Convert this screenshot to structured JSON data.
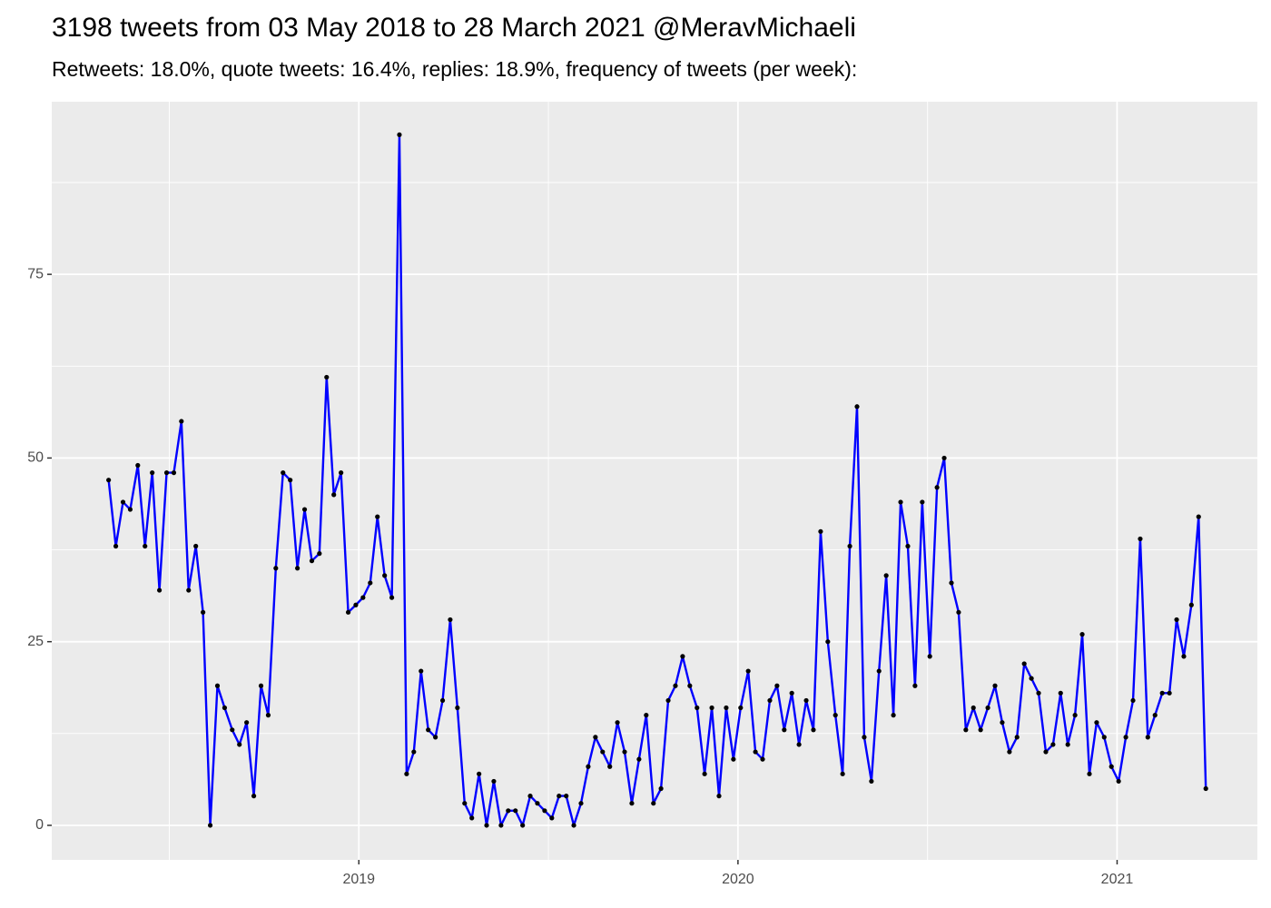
{
  "chart_data": {
    "type": "line",
    "title": "3198 tweets from 03 May 2018 to 28 March 2021 @MeravMichaeli",
    "subtitle": "Retweets: 18.0%, quote tweets: 16.4%, replies: 18.9%, frequency of tweets (per week):",
    "color": "#0000ff",
    "point_color": "#000000",
    "x": [
      2018.34,
      2018.359,
      2018.378,
      2018.397,
      2018.417,
      2018.436,
      2018.455,
      2018.474,
      2018.493,
      2018.512,
      2018.532,
      2018.551,
      2018.57,
      2018.589,
      2018.608,
      2018.627,
      2018.646,
      2018.666,
      2018.685,
      2018.704,
      2018.723,
      2018.742,
      2018.761,
      2018.781,
      2018.8,
      2018.819,
      2018.838,
      2018.857,
      2018.876,
      2018.896,
      2018.915,
      2018.934,
      2018.953,
      2018.972,
      2018.992,
      2019.011,
      2019.03,
      2019.049,
      2019.068,
      2019.087,
      2019.107,
      2019.126,
      2019.145,
      2019.164,
      2019.183,
      2019.202,
      2019.221,
      2019.241,
      2019.26,
      2019.279,
      2019.298,
      2019.317,
      2019.337,
      2019.356,
      2019.375,
      2019.394,
      2019.413,
      2019.432,
      2019.452,
      2019.471,
      2019.49,
      2019.509,
      2019.528,
      2019.547,
      2019.567,
      2019.586,
      2019.605,
      2019.624,
      2019.643,
      2019.662,
      2019.682,
      2019.701,
      2019.72,
      2019.739,
      2019.758,
      2019.777,
      2019.797,
      2019.816,
      2019.835,
      2019.854,
      2019.873,
      2019.892,
      2019.912,
      2019.931,
      2019.95,
      2019.969,
      2019.988,
      2020.007,
      2020.027,
      2020.046,
      2020.065,
      2020.084,
      2020.103,
      2020.122,
      2020.142,
      2020.161,
      2020.18,
      2020.199,
      2020.218,
      2020.237,
      2020.257,
      2020.276,
      2020.295,
      2020.314,
      2020.333,
      2020.352,
      2020.372,
      2020.391,
      2020.41,
      2020.429,
      2020.448,
      2020.467,
      2020.486,
      2020.506,
      2020.525,
      2020.544,
      2020.563,
      2020.582,
      2020.601,
      2020.621,
      2020.64,
      2020.659,
      2020.678,
      2020.697,
      2020.716,
      2020.736,
      2020.755,
      2020.774,
      2020.793,
      2020.812,
      2020.831,
      2020.851,
      2020.87,
      2020.889,
      2020.908,
      2020.927,
      2020.946,
      2020.966,
      2020.985,
      2021.004,
      2021.023,
      2021.042,
      2021.061,
      2021.081,
      2021.1,
      2021.119,
      2021.138,
      2021.157,
      2021.176,
      2021.196,
      2021.215,
      2021.234
    ],
    "values": [
      47,
      38,
      44,
      43,
      49,
      38,
      48,
      32,
      48,
      48,
      55,
      32,
      38,
      29,
      0,
      19,
      16,
      13,
      11,
      14,
      4,
      19,
      15,
      35,
      48,
      47,
      35,
      43,
      36,
      37,
      61,
      45,
      48,
      29,
      30,
      31,
      33,
      42,
      34,
      31,
      94,
      7,
      10,
      21,
      13,
      12,
      17,
      28,
      16,
      3,
      1,
      7,
      0,
      6,
      0,
      2,
      2,
      0,
      4,
      3,
      2,
      1,
      4,
      4,
      0,
      3,
      8,
      12,
      10,
      8,
      14,
      10,
      3,
      9,
      15,
      3,
      5,
      17,
      19,
      23,
      19,
      16,
      7,
      16,
      4,
      16,
      9,
      16,
      21,
      10,
      9,
      17,
      19,
      13,
      18,
      11,
      17,
      13,
      40,
      25,
      15,
      7,
      38,
      57,
      12,
      6,
      21,
      34,
      15,
      44,
      38,
      19,
      44,
      23,
      46,
      50,
      33,
      29,
      13,
      16,
      13,
      16,
      19,
      14,
      10,
      12,
      22,
      20,
      18,
      10,
      11,
      18,
      11,
      15,
      26,
      7,
      14,
      12,
      8,
      6,
      12,
      17,
      39,
      12,
      15,
      18,
      18,
      28,
      23,
      30,
      42,
      5
    ],
    "xlim": [
      2018.19,
      2021.37
    ],
    "xticks": [
      2019,
      2020,
      2021
    ],
    "xminor": [
      2018.5,
      2019.5,
      2020.5
    ],
    "ylim": [
      -4.7,
      98.5
    ],
    "yticks": [
      0,
      25,
      50,
      75
    ],
    "yminor": [
      12.5,
      37.5,
      62.5,
      87.5
    ],
    "grid": true
  }
}
